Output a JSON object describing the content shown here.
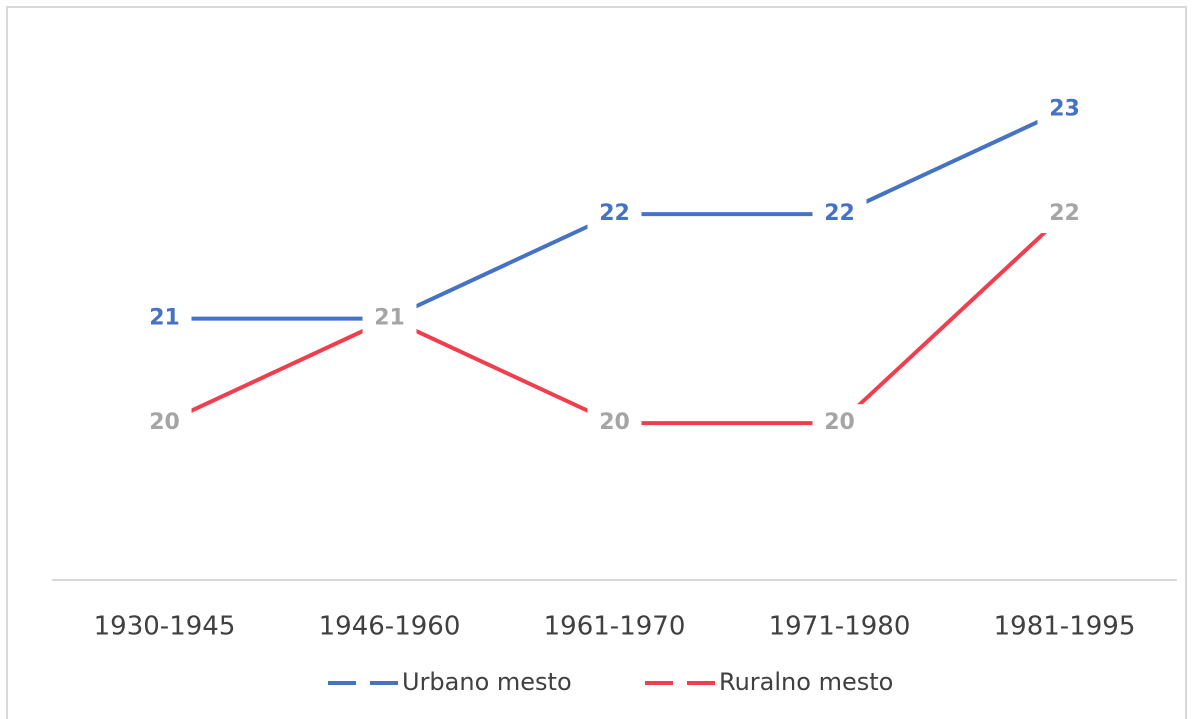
{
  "chart_data": {
    "type": "line",
    "categories": [
      "1930-1945",
      "1946-1960",
      "1961-1970",
      "1971-1980",
      "1981-1995"
    ],
    "series": [
      {
        "name": "Urbano mesto",
        "color": "#4472c4",
        "label_color": "#4472c4",
        "values": [
          21,
          21,
          22,
          22,
          23
        ]
      },
      {
        "name": "Ruralno mesto",
        "color": "#f03e4d",
        "label_color": "#a5a5a5",
        "values": [
          20,
          21,
          20,
          20,
          22
        ]
      }
    ],
    "ylim": [
      18.5,
      24
    ]
  }
}
